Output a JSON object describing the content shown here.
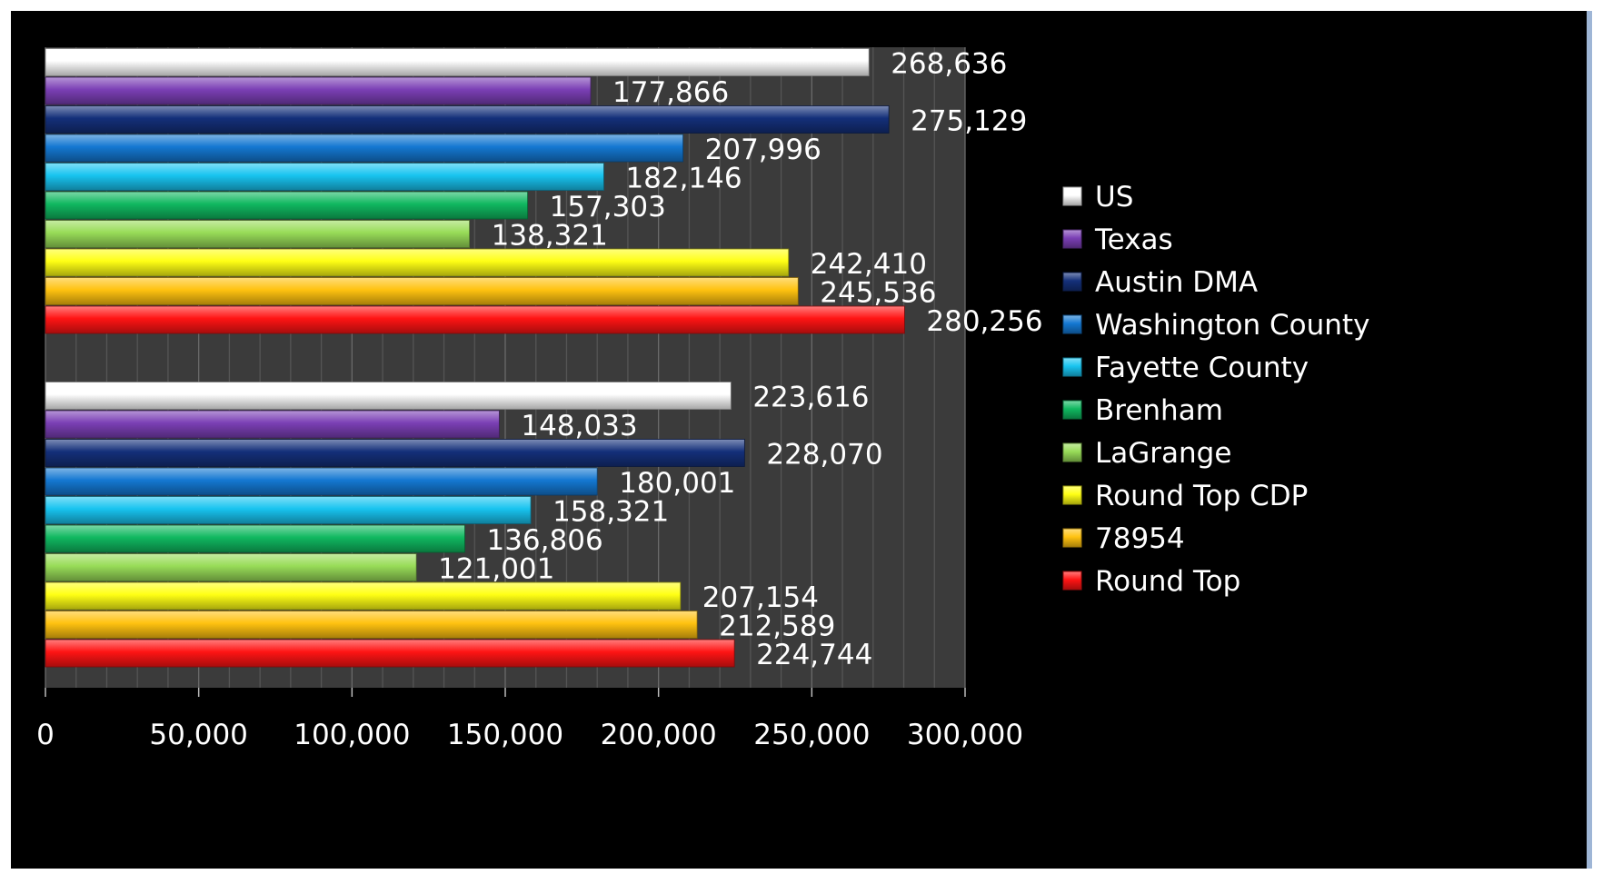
{
  "chart_data": {
    "type": "bar",
    "orientation": "horizontal",
    "title": "",
    "xlabel": "",
    "ylabel": "",
    "xlim": [
      0,
      300000
    ],
    "x_ticks": [
      "0",
      "50,000",
      "100,000",
      "150,000",
      "200,000",
      "250,000",
      "300,000"
    ],
    "grid": true,
    "legend_position": "right",
    "groups": [
      {
        "name": "",
        "series": [
          {
            "name": "US",
            "value": 268636,
            "label": "268,636",
            "color": "#ffffff"
          },
          {
            "name": "Texas",
            "value": 177866,
            "label": "177,866",
            "color": "#7b3fb5"
          },
          {
            "name": "Austin DMA",
            "value": 275129,
            "label": "275,129",
            "color": "#14307a"
          },
          {
            "name": "Washington County",
            "value": 207996,
            "label": "207,996",
            "color": "#1478d2"
          },
          {
            "name": "Fayette County",
            "value": 182146,
            "label": "182,146",
            "color": "#18c4f0"
          },
          {
            "name": "Brenham",
            "value": 157303,
            "label": "157,303",
            "color": "#10b860"
          },
          {
            "name": "LaGrange",
            "value": 138321,
            "label": "138,321",
            "color": "#98dc58"
          },
          {
            "name": "Round Top CDP",
            "value": 242410,
            "label": "242,410",
            "color": "#ffff14"
          },
          {
            "name": "78954",
            "value": 245536,
            "label": "245,536",
            "color": "#ffc210"
          },
          {
            "name": "Round Top",
            "value": 280256,
            "label": "280,256",
            "color": "#ff1414"
          }
        ]
      },
      {
        "name": "",
        "series": [
          {
            "name": "US",
            "value": 223616,
            "label": "223,616",
            "color": "#ffffff"
          },
          {
            "name": "Texas",
            "value": 148033,
            "label": "148,033",
            "color": "#7b3fb5"
          },
          {
            "name": "Austin DMA",
            "value": 228070,
            "label": "228,070",
            "color": "#14307a"
          },
          {
            "name": "Washington County",
            "value": 180001,
            "label": "180,001",
            "color": "#1478d2"
          },
          {
            "name": "Fayette County",
            "value": 158321,
            "label": "158,321",
            "color": "#18c4f0"
          },
          {
            "name": "Brenham",
            "value": 136806,
            "label": "136,806",
            "color": "#10b860"
          },
          {
            "name": "LaGrange",
            "value": 121001,
            "label": "121,001",
            "color": "#98dc58"
          },
          {
            "name": "Round Top CDP",
            "value": 207154,
            "label": "207,154",
            "color": "#ffff14"
          },
          {
            "name": "78954",
            "value": 212589,
            "label": "212,589",
            "color": "#ffc210"
          },
          {
            "name": "Round Top",
            "value": 224744,
            "label": "224,744",
            "color": "#ff1414"
          }
        ]
      }
    ],
    "legend": [
      "US",
      "Texas",
      "Austin DMA",
      "Washington County",
      "Fayette County",
      "Brenham",
      "LaGrange",
      "Round Top CDP",
      "78954",
      "Round Top"
    ]
  }
}
